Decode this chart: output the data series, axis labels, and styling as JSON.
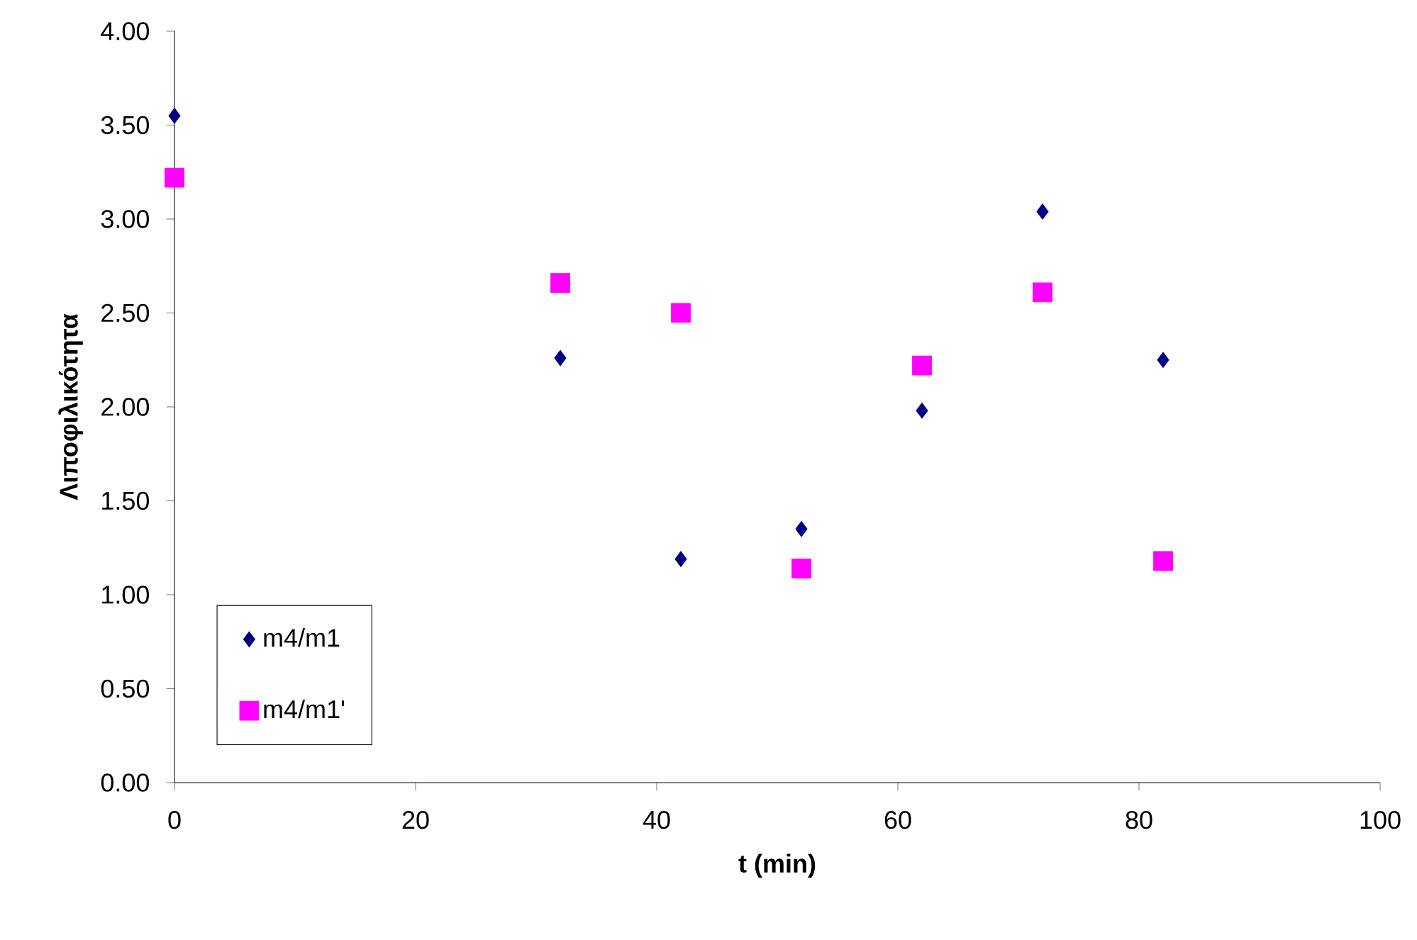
{
  "chart_data": {
    "type": "scatter",
    "xlabel": "t (min)",
    "ylabel": "Λιποφιλικότητα",
    "xlim": [
      0,
      100
    ],
    "ylim": [
      0,
      4
    ],
    "xticks": [
      0,
      20,
      40,
      60,
      80,
      100
    ],
    "yticks": [
      {
        "value": 0,
        "label": "0.00"
      },
      {
        "value": 0.5,
        "label": "0.50"
      },
      {
        "value": 1,
        "label": "1.00"
      },
      {
        "value": 1.5,
        "label": "1.50"
      },
      {
        "value": 2,
        "label": "2.00"
      },
      {
        "value": 2.5,
        "label": "2.50"
      },
      {
        "value": 3,
        "label": "3.00"
      },
      {
        "value": 3.5,
        "label": "3.50"
      },
      {
        "value": 4,
        "label": "4.00"
      }
    ],
    "grid": false,
    "legend": "bottom left",
    "series": [
      {
        "name": "m4/m1",
        "color": "#000080",
        "marker": "diamond",
        "x": [
          0,
          32,
          42,
          52,
          62,
          72,
          82
        ],
        "values": [
          3.55,
          2.26,
          1.19,
          1.35,
          1.98,
          3.04,
          2.25
        ]
      },
      {
        "name": "m4/m1'",
        "color": "#ff00ff",
        "marker": "square",
        "x": [
          0,
          32,
          42,
          52,
          62,
          72,
          82
        ],
        "values": [
          3.22,
          2.66,
          2.5,
          1.14,
          2.22,
          2.61,
          1.18
        ]
      }
    ]
  }
}
